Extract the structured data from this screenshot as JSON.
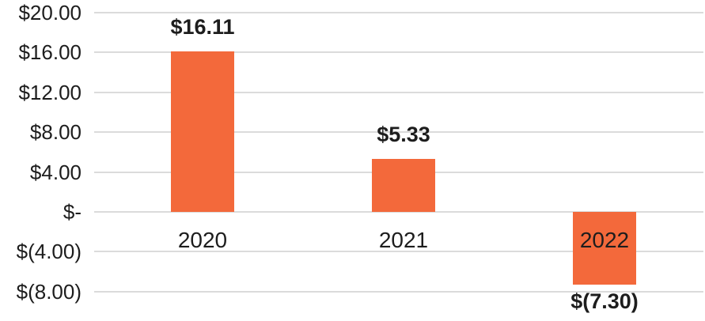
{
  "chart_data": {
    "type": "bar",
    "title": "",
    "xlabel": "",
    "ylabel": "",
    "categories": [
      "2020",
      "2021",
      "2022"
    ],
    "values": [
      16.11,
      5.33,
      -7.3
    ],
    "data_labels": [
      "$16.11",
      "$5.33",
      "$(7.30)"
    ],
    "series_name": "",
    "ylim": [
      -8,
      20
    ],
    "ytick_values": [
      20,
      16,
      12,
      8,
      4,
      0,
      -4,
      -8
    ],
    "ytick_labels": [
      "$20.00",
      "$16.00",
      "$12.00",
      "$8.00",
      "$4.00",
      "$-",
      "$(4.00)",
      "$(8.00)"
    ],
    "grid": true,
    "legend": false,
    "colors": {
      "bar": "#F3693B",
      "gridline": "#DBDBDB",
      "text": "#1D1D1D"
    }
  }
}
